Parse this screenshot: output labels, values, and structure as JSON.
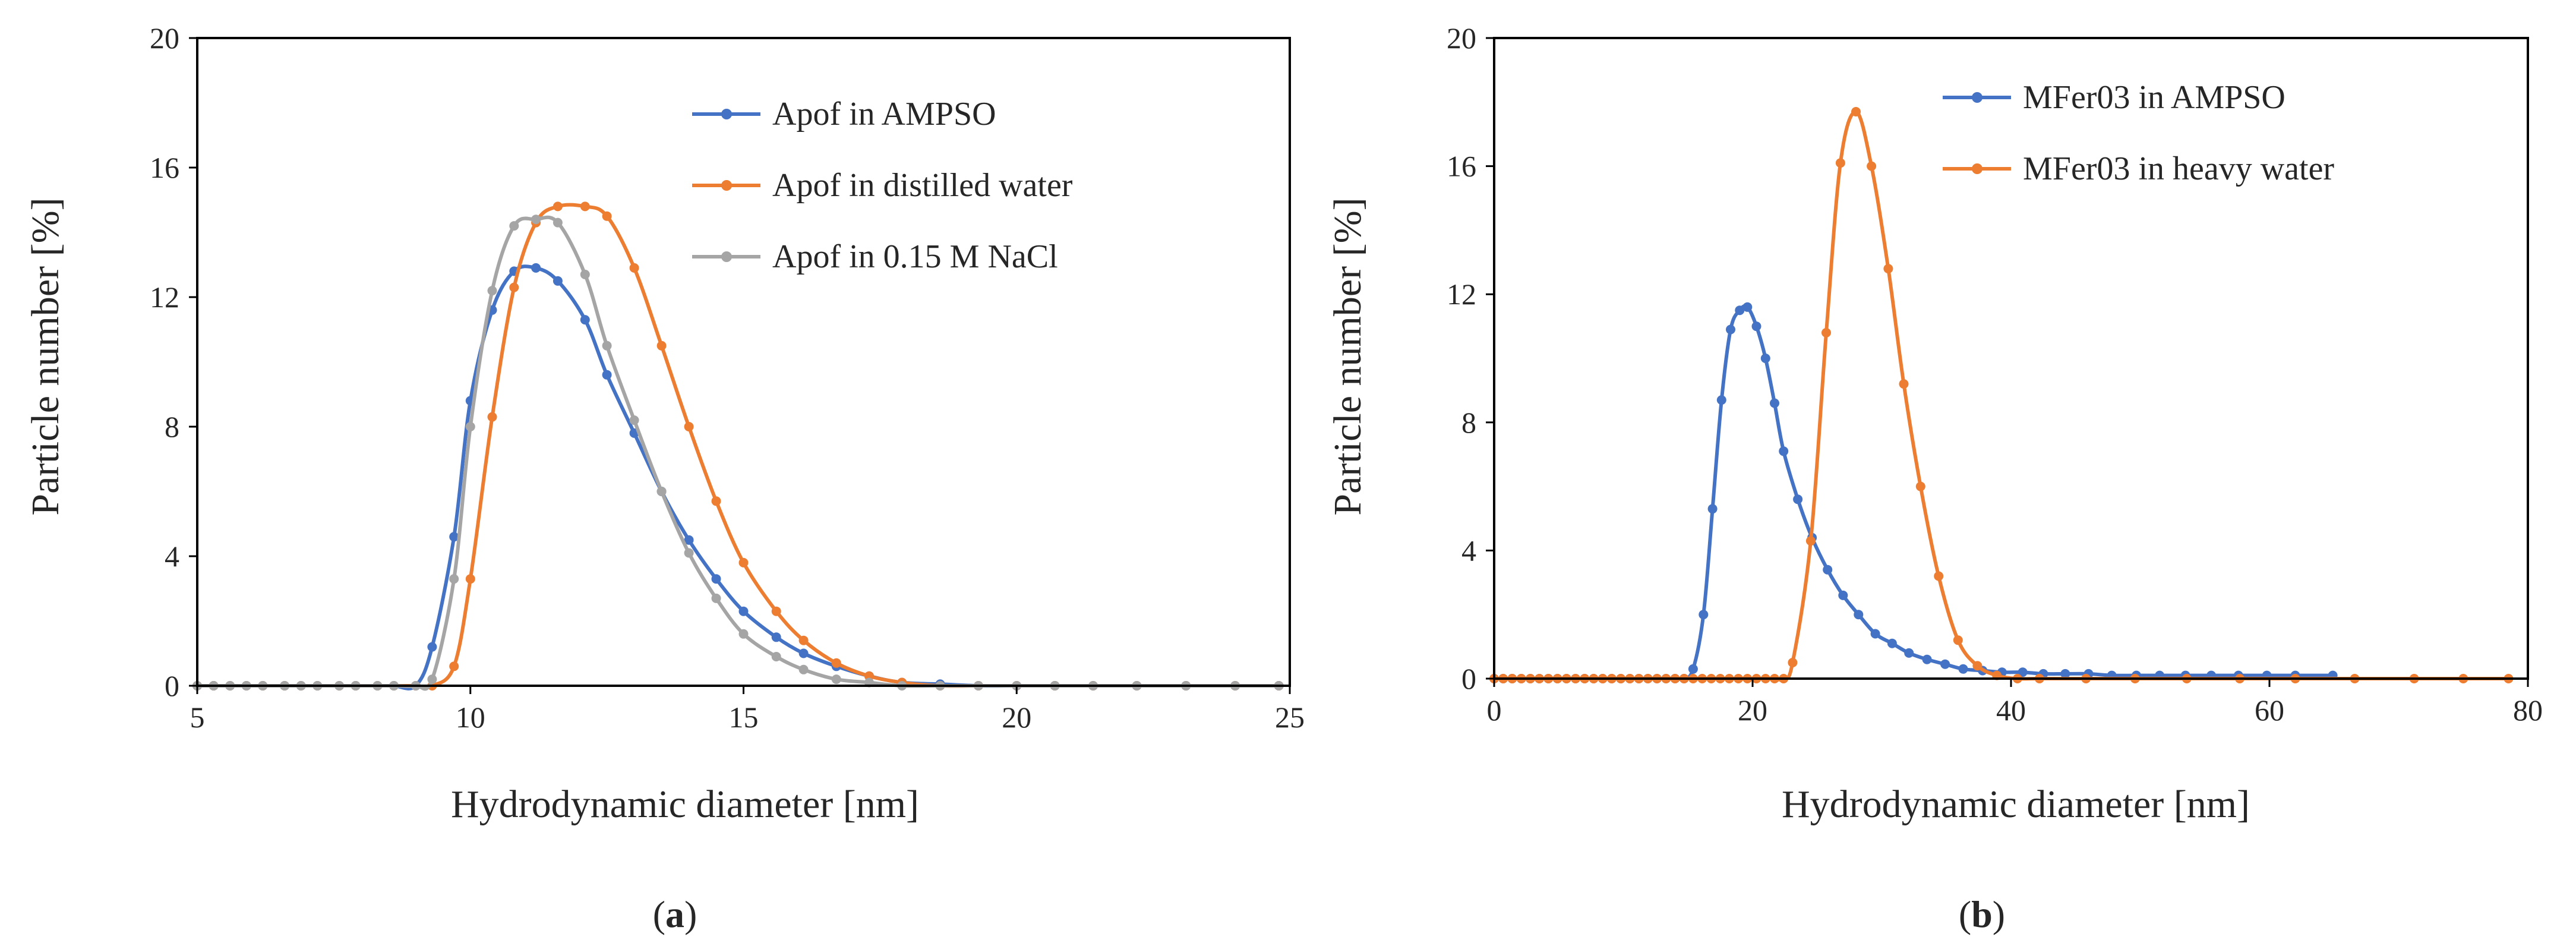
{
  "chart_data": [
    {
      "type": "line",
      "panel_label": "a",
      "title": "",
      "xlabel": "Hydrodynamic diameter [nm]",
      "ylabel": "Particle number [%]",
      "xlim": [
        5,
        25
      ],
      "ylim": [
        0,
        20
      ],
      "xticks": [
        5,
        10,
        15,
        20,
        25
      ],
      "yticks": [
        0,
        4,
        8,
        12,
        16,
        20
      ],
      "grid": false,
      "legend_position": "top-right",
      "colors": {
        "axis": "#000000",
        "text": "#262626"
      },
      "series": [
        {
          "name": "Apof in AMPSO",
          "color": "#4472C4",
          "x": [
            5.0,
            5.3,
            5.6,
            5.9,
            6.2,
            6.6,
            6.9,
            7.2,
            7.6,
            7.9,
            8.3,
            8.6,
            9.0,
            9.3,
            9.7,
            10.0,
            10.4,
            10.8,
            11.2,
            11.6,
            12.1,
            12.5,
            13.0,
            13.5,
            14.0,
            14.5,
            15.0,
            15.6,
            16.1,
            16.7,
            17.3,
            17.9,
            18.6,
            19.3,
            20.0,
            20.7,
            21.4,
            22.2,
            23.1,
            24.0,
            24.8
          ],
          "y": [
            0,
            0,
            0,
            0,
            0,
            0,
            0,
            0,
            0,
            0,
            0,
            0,
            0,
            1.2,
            4.6,
            8.8,
            11.6,
            12.8,
            12.9,
            12.5,
            11.3,
            9.6,
            7.8,
            6.0,
            4.5,
            3.3,
            2.3,
            1.5,
            1.0,
            0.6,
            0.3,
            0.1,
            0.05,
            0,
            0,
            0,
            0,
            0,
            0,
            0,
            0
          ]
        },
        {
          "name": "Apof in distilled water",
          "color": "#ED7D31",
          "x": [
            5.0,
            5.3,
            5.6,
            5.9,
            6.2,
            6.6,
            6.9,
            7.2,
            7.6,
            7.9,
            8.3,
            8.6,
            9.0,
            9.3,
            9.7,
            10.0,
            10.4,
            10.8,
            11.2,
            11.6,
            12.1,
            12.5,
            13.0,
            13.5,
            14.0,
            14.5,
            15.0,
            15.6,
            16.1,
            16.7,
            17.3,
            17.9,
            18.6,
            19.3,
            20.0,
            20.7,
            21.4,
            22.2,
            23.1,
            24.0,
            24.8
          ],
          "y": [
            0,
            0,
            0,
            0,
            0,
            0,
            0,
            0,
            0,
            0,
            0,
            0,
            0,
            0,
            0.6,
            3.3,
            8.3,
            12.3,
            14.3,
            14.8,
            14.8,
            14.5,
            12.9,
            10.5,
            8.0,
            5.7,
            3.8,
            2.3,
            1.4,
            0.7,
            0.3,
            0.1,
            0,
            0,
            0,
            0,
            0,
            0,
            0,
            0,
            0
          ]
        },
        {
          "name": "Apof in 0.15 M NaCl",
          "color": "#A5A5A5",
          "x": [
            5.0,
            5.3,
            5.6,
            5.9,
            6.2,
            6.6,
            6.9,
            7.2,
            7.6,
            7.9,
            8.3,
            8.6,
            9.0,
            9.3,
            9.7,
            10.0,
            10.4,
            10.8,
            11.2,
            11.6,
            12.1,
            12.5,
            13.0,
            13.5,
            14.0,
            14.5,
            15.0,
            15.6,
            16.1,
            16.7,
            17.3,
            17.9,
            18.6,
            19.3,
            20.0,
            20.7,
            21.4,
            22.2,
            23.1,
            24.0,
            24.8
          ],
          "y": [
            0,
            0,
            0,
            0,
            0,
            0,
            0,
            0,
            0,
            0,
            0,
            0,
            0,
            0.2,
            3.3,
            8.0,
            12.2,
            14.2,
            14.4,
            14.3,
            12.7,
            10.5,
            8.2,
            6.0,
            4.1,
            2.7,
            1.6,
            0.9,
            0.5,
            0.2,
            0.1,
            0,
            0,
            0,
            0,
            0,
            0,
            0,
            0,
            0,
            0
          ]
        }
      ]
    },
    {
      "type": "line",
      "panel_label": "b",
      "title": "",
      "xlabel": "Hydrodynamic diameter [nm]",
      "ylabel": "Particle number [%]",
      "xlim": [
        0,
        80
      ],
      "ylim": [
        0,
        20
      ],
      "xticks": [
        0,
        20,
        40,
        60,
        80
      ],
      "yticks": [
        0,
        4,
        8,
        12,
        16,
        20
      ],
      "grid": false,
      "legend_position": "top-right",
      "colors": {
        "axis": "#000000",
        "text": "#262626"
      },
      "series": [
        {
          "name": "MFer03 in AMPSO",
          "color": "#4472C4",
          "x": [
            0,
            0.7,
            1.4,
            2.1,
            2.8,
            3.5,
            4.2,
            4.9,
            5.6,
            6.3,
            7.0,
            7.7,
            8.4,
            9.1,
            9.8,
            10.5,
            11.2,
            11.9,
            12.6,
            13.3,
            14.0,
            14.7,
            15.4,
            16.2,
            16.9,
            17.6,
            18.3,
            19.0,
            19.6,
            20.3,
            21.0,
            21.7,
            22.4,
            23.5,
            24.6,
            25.8,
            27.0,
            28.2,
            29.5,
            30.8,
            32.1,
            33.5,
            34.9,
            36.3,
            37.8,
            39.3,
            40.9,
            42.5,
            44.2,
            46.0,
            47.8,
            49.7,
            51.5,
            53.5,
            55.5,
            57.6,
            59.8,
            62.0,
            64.9
          ],
          "y": [
            0,
            0,
            0,
            0,
            0,
            0,
            0,
            0,
            0,
            0,
            0,
            0,
            0,
            0,
            0,
            0,
            0,
            0,
            0,
            0,
            0,
            0,
            0.3,
            2.0,
            5.3,
            8.7,
            10.9,
            11.5,
            11.6,
            11.0,
            10.0,
            8.6,
            7.1,
            5.6,
            4.4,
            3.4,
            2.6,
            2.0,
            1.4,
            1.1,
            0.8,
            0.6,
            0.45,
            0.3,
            0.25,
            0.2,
            0.2,
            0.15,
            0.15,
            0.15,
            0.1,
            0.1,
            0.1,
            0.1,
            0.1,
            0.1,
            0.1,
            0.1,
            0.1
          ]
        },
        {
          "name": "MFer03 in heavy water",
          "color": "#ED7D31",
          "x": [
            0,
            0.7,
            1.4,
            2.1,
            2.8,
            3.5,
            4.2,
            4.9,
            5.6,
            6.3,
            7.0,
            7.7,
            8.4,
            9.1,
            9.8,
            10.5,
            11.2,
            11.9,
            12.6,
            13.3,
            14.0,
            14.7,
            15.4,
            16.1,
            16.8,
            17.5,
            18.2,
            18.9,
            19.6,
            20.3,
            21.0,
            21.7,
            22.4,
            23.1,
            24.5,
            25.7,
            26.8,
            28.0,
            29.2,
            30.5,
            31.7,
            33.0,
            34.4,
            35.9,
            37.4,
            38.9,
            40.5,
            42.2,
            45.8,
            49.6,
            53.6,
            57.7,
            62.0,
            66.6,
            71.2,
            75.0,
            78.5
          ],
          "y": [
            0,
            0,
            0,
            0,
            0,
            0,
            0,
            0,
            0,
            0,
            0,
            0,
            0,
            0,
            0,
            0,
            0,
            0,
            0,
            0,
            0,
            0,
            0,
            0,
            0,
            0,
            0,
            0,
            0,
            0,
            0,
            0,
            0,
            0.5,
            4.3,
            10.8,
            16.1,
            17.7,
            16.0,
            12.8,
            9.2,
            6.0,
            3.2,
            1.2,
            0.4,
            0.1,
            0,
            0,
            0,
            0,
            0,
            0,
            0,
            0,
            0,
            0,
            0
          ]
        }
      ]
    }
  ]
}
